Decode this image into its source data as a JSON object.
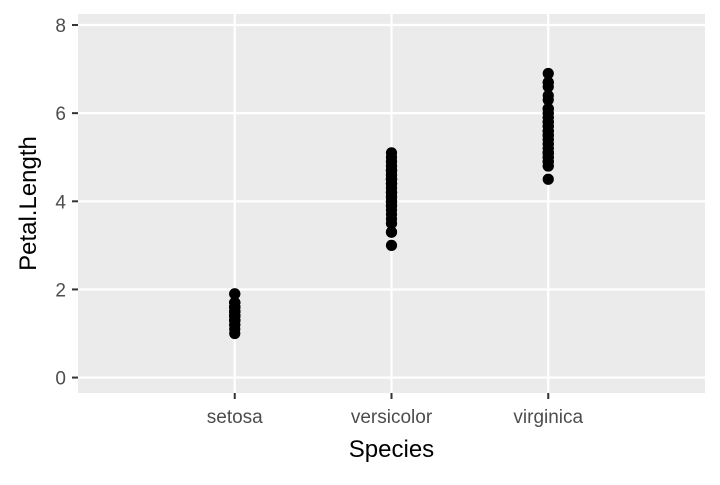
{
  "chart_data": {
    "type": "scatter",
    "title": "",
    "xlabel": "Species",
    "ylabel": "Petal.Length",
    "categories": [
      "setosa",
      "versicolor",
      "virginica"
    ],
    "ylim": [
      -0.35,
      8.25
    ],
    "yticks": [
      0,
      2,
      4,
      6,
      8
    ],
    "grid": true,
    "series": [
      {
        "name": "setosa",
        "category": "setosa",
        "values": [
          1.4,
          1.4,
          1.3,
          1.5,
          1.4,
          1.7,
          1.4,
          1.5,
          1.4,
          1.5,
          1.5,
          1.6,
          1.4,
          1.1,
          1.2,
          1.5,
          1.3,
          1.4,
          1.7,
          1.5,
          1.7,
          1.5,
          1.0,
          1.7,
          1.9,
          1.6,
          1.6,
          1.5,
          1.4,
          1.6,
          1.6,
          1.5,
          1.5,
          1.4,
          1.5,
          1.2,
          1.3,
          1.4,
          1.3,
          1.5,
          1.3,
          1.3,
          1.3,
          1.6,
          1.9,
          1.4,
          1.6,
          1.4,
          1.5,
          1.4
        ]
      },
      {
        "name": "versicolor",
        "category": "versicolor",
        "values": [
          4.7,
          4.5,
          4.9,
          4.0,
          4.6,
          4.5,
          4.7,
          3.3,
          4.6,
          3.9,
          3.5,
          4.2,
          4.0,
          4.7,
          3.6,
          4.4,
          4.5,
          4.1,
          4.5,
          3.9,
          4.8,
          4.0,
          4.9,
          4.7,
          4.3,
          4.4,
          4.8,
          5.0,
          4.5,
          3.5,
          3.8,
          3.7,
          3.9,
          5.1,
          4.5,
          4.5,
          4.7,
          4.4,
          4.1,
          4.0,
          4.4,
          4.6,
          4.0,
          3.3,
          4.2,
          4.2,
          4.2,
          4.3,
          3.0,
          4.1
        ]
      },
      {
        "name": "virginica",
        "category": "virginica",
        "values": [
          6.0,
          5.1,
          5.9,
          5.6,
          5.8,
          6.6,
          4.5,
          6.3,
          5.8,
          6.1,
          5.1,
          5.3,
          5.5,
          5.0,
          5.1,
          5.3,
          5.5,
          6.7,
          6.9,
          5.0,
          5.7,
          4.9,
          6.7,
          4.9,
          5.7,
          6.0,
          4.8,
          4.9,
          5.6,
          5.8,
          6.1,
          6.4,
          5.6,
          5.1,
          5.6,
          6.1,
          5.6,
          5.5,
          4.8,
          5.4,
          5.6,
          5.1,
          5.1,
          5.9,
          5.7,
          5.2,
          5.0,
          5.2,
          5.4,
          5.1
        ]
      }
    ],
    "colors": {
      "panel_background": "#ebebeb",
      "grid_major": "#ffffff",
      "point": "#000000",
      "tick_label": "#4d4d4d",
      "axis_title": "#000000",
      "tick_mark": "#333333"
    }
  }
}
